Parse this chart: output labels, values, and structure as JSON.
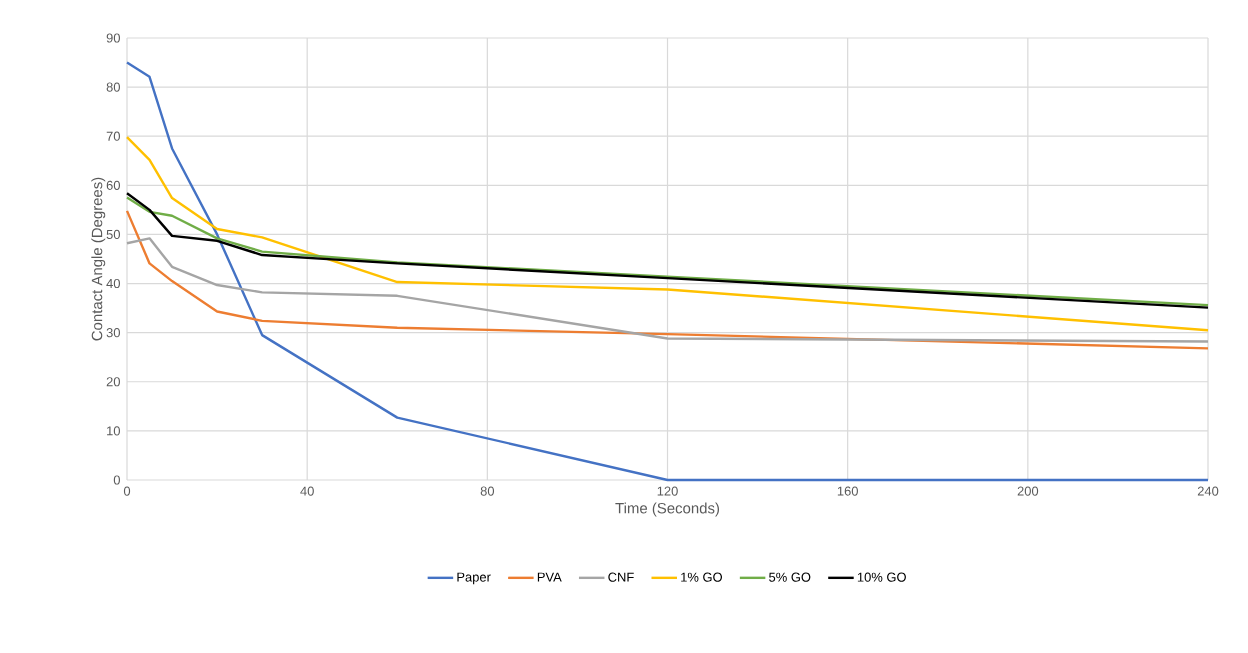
{
  "chart_data": {
    "type": "line",
    "xlabel": "Time (Seconds)",
    "ylabel": "Contact Angle (Degrees)",
    "x": [
      0,
      5,
      10,
      20,
      30,
      60,
      120,
      240
    ],
    "series": [
      {
        "name": "Paper",
        "color": "#4472c4",
        "values": [
          85.0,
          82.1,
          67.5,
          50.0,
          29.5,
          12.7,
          0,
          0
        ]
      },
      {
        "name": "PVA",
        "color": "#ed7d31",
        "values": [
          54.8,
          44.1,
          40.5,
          34.3,
          32.4,
          31.0,
          29.7,
          26.8
        ]
      },
      {
        "name": "CNF",
        "color": "#a5a5a5",
        "values": [
          48.2,
          49.2,
          43.4,
          39.7,
          38.2,
          37.5,
          28.8,
          28.2
        ]
      },
      {
        "name": "1% GO",
        "color": "#ffc000",
        "values": [
          69.8,
          65.2,
          57.4,
          51.1,
          49.4,
          40.3,
          38.8,
          30.5
        ]
      },
      {
        "name": "5% GO",
        "color": "#70ad47",
        "values": [
          57.5,
          54.6,
          53.8,
          49.2,
          46.5,
          44.3,
          41.4,
          35.6
        ]
      },
      {
        "name": "10% GO",
        "color": "#000000",
        "values": [
          58.4,
          55.0,
          49.7,
          48.7,
          45.8,
          44.1,
          41.1,
          35.1
        ]
      }
    ],
    "xlim": [
      0,
      240
    ],
    "xticks": [
      0,
      40,
      80,
      120,
      160,
      200,
      240
    ],
    "ylim": [
      0,
      90
    ],
    "yticks": [
      0,
      10,
      20,
      30,
      40,
      50,
      60,
      70,
      80,
      90
    ],
    "grid": true,
    "legend": "bottom"
  }
}
